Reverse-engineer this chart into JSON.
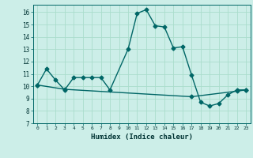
{
  "title": "",
  "xlabel": "Humidex (Indice chaleur)",
  "ylabel": "",
  "background_color": "#cceee8",
  "grid_color": "#aaddcc",
  "line_color": "#006666",
  "xlim": [
    -0.5,
    23.5
  ],
  "ylim": [
    7,
    16.6
  ],
  "xticks": [
    0,
    1,
    2,
    3,
    4,
    5,
    6,
    7,
    8,
    9,
    10,
    11,
    12,
    13,
    14,
    15,
    16,
    17,
    18,
    19,
    20,
    21,
    22,
    23
  ],
  "yticks": [
    7,
    8,
    9,
    10,
    11,
    12,
    13,
    14,
    15,
    16
  ],
  "line1_x": [
    0,
    1,
    2,
    3,
    4,
    5,
    6,
    7,
    8,
    10,
    11,
    12,
    13,
    14,
    15,
    16,
    17,
    18,
    19,
    20,
    21,
    22,
    23
  ],
  "line1_y": [
    10.1,
    11.4,
    10.5,
    9.7,
    10.7,
    10.7,
    10.7,
    10.7,
    9.7,
    13.0,
    15.9,
    16.2,
    14.9,
    14.8,
    13.1,
    13.2,
    10.9,
    8.7,
    8.4,
    8.6,
    9.3,
    9.7,
    9.7
  ],
  "line2_x": [
    0,
    3,
    17,
    22,
    23
  ],
  "line2_y": [
    10.1,
    9.75,
    9.15,
    9.6,
    9.7
  ],
  "marker": "D",
  "markersize": 2.5,
  "linewidth": 1.0
}
